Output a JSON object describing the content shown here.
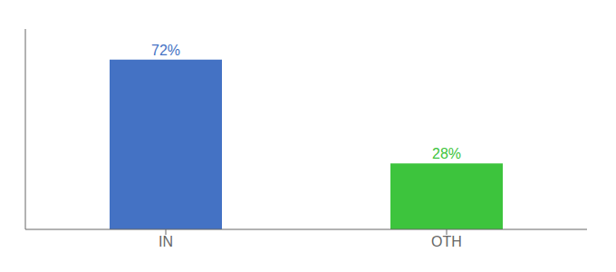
{
  "chart_data": {
    "type": "bar",
    "categories": [
      "IN",
      "OTH"
    ],
    "values": [
      72,
      28
    ],
    "value_labels": [
      "72%",
      "28%"
    ],
    "colors": [
      "#4472c4",
      "#3dc43d"
    ],
    "ylim": [
      0,
      85
    ],
    "data_labels": true,
    "tick_labels": "x"
  }
}
